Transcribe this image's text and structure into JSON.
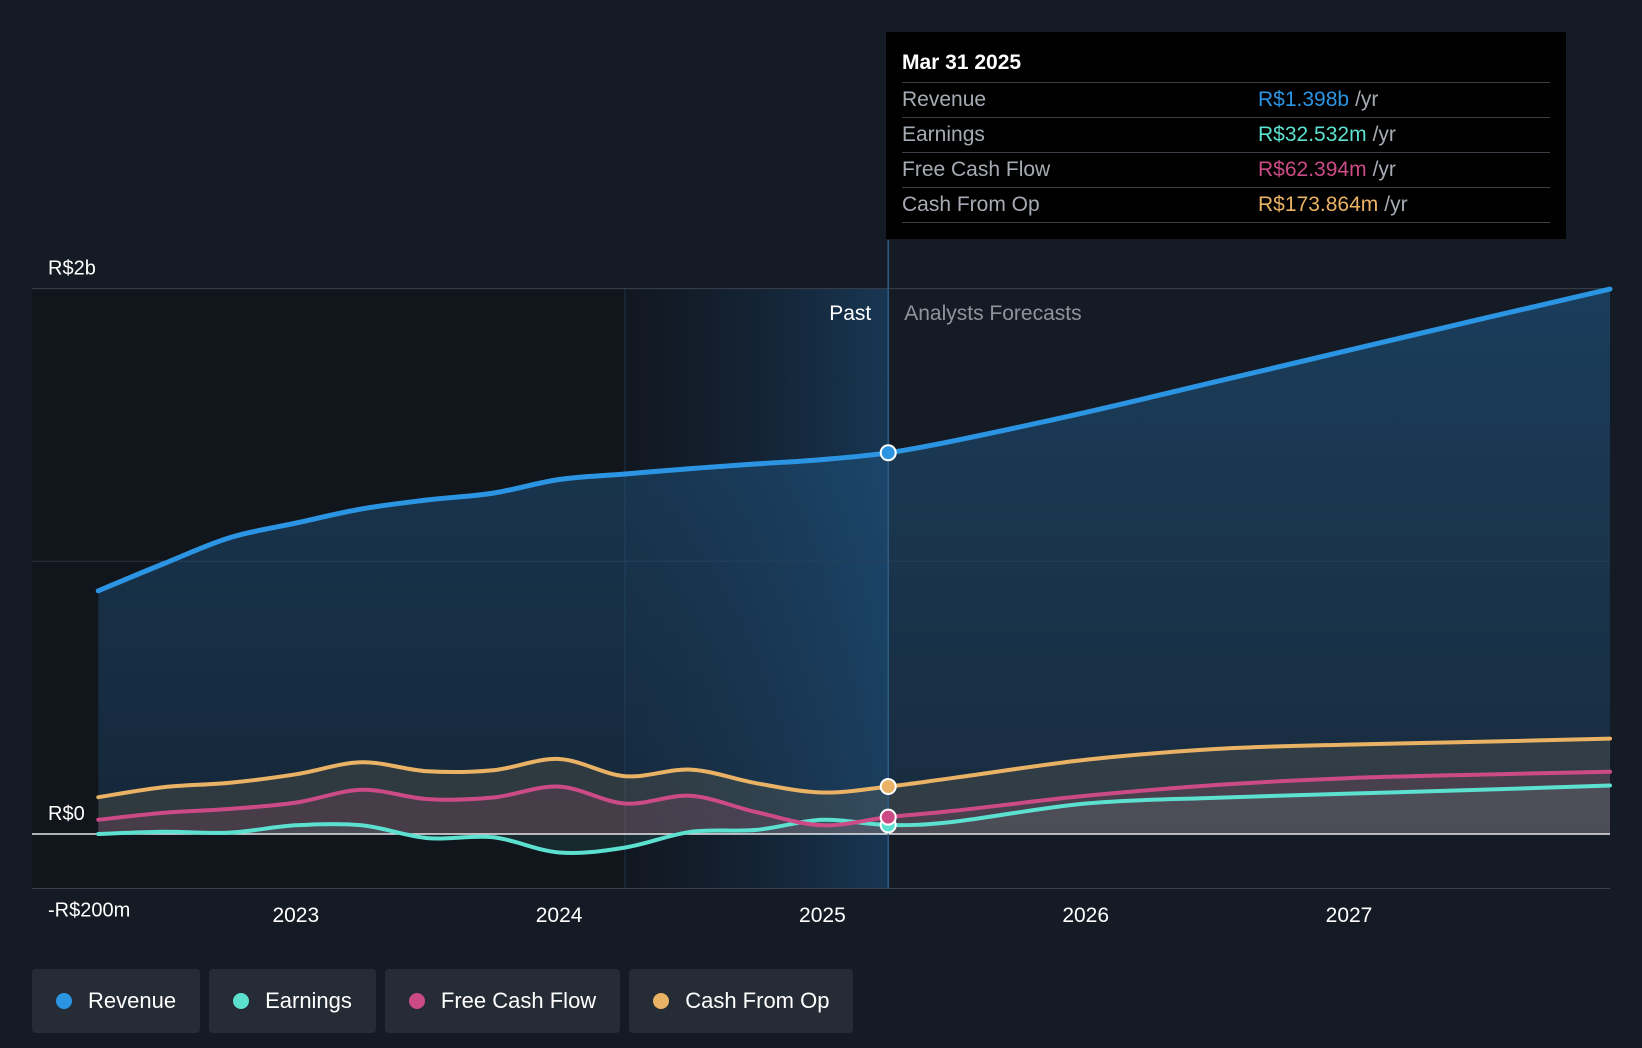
{
  "tooltip": {
    "date": "Mar 31 2025",
    "rows": [
      {
        "label": "Revenue",
        "value": "R$1.398b",
        "unit": "/yr",
        "color": "#2b95e3"
      },
      {
        "label": "Earnings",
        "value": "R$32.532m",
        "unit": "/yr",
        "color": "#5ce0d0"
      },
      {
        "label": "Free Cash Flow",
        "value": "R$62.394m",
        "unit": "/yr",
        "color": "#cc4b86"
      },
      {
        "label": "Cash From Op",
        "value": "R$173.864m",
        "unit": "/yr",
        "color": "#eab264"
      }
    ]
  },
  "legend": [
    {
      "label": "Revenue",
      "color": "#2b95e3"
    },
    {
      "label": "Earnings",
      "color": "#5ce0d0"
    },
    {
      "label": "Free Cash Flow",
      "color": "#cc4b86"
    },
    {
      "label": "Cash From Op",
      "color": "#eab264"
    }
  ],
  "chart_data": {
    "type": "area",
    "title": "",
    "xlabel": "",
    "ylabel": "",
    "y_ticks": [
      {
        "value": 2000,
        "label": "R$2b"
      },
      {
        "value": 0,
        "label": "R$0"
      },
      {
        "value": -200,
        "label": "-R$200m"
      }
    ],
    "x_ticks": [
      {
        "value": 2023,
        "label": "2023"
      },
      {
        "value": 2024,
        "label": "2024"
      },
      {
        "value": 2025,
        "label": "2025"
      },
      {
        "value": 2026,
        "label": "2026"
      },
      {
        "value": 2027,
        "label": "2027"
      }
    ],
    "xlim": [
      2022.0,
      2028.0
    ],
    "ylim": [
      -200,
      2000
    ],
    "grid_values": [
      1000
    ],
    "past_label": "Past",
    "forecast_label": "Analysts Forecasts",
    "highlight_start": 2024.25,
    "divider_x": 2025.25,
    "series": [
      {
        "name": "Revenue",
        "color": "#2b95e3",
        "x": [
          2022.25,
          2022.5,
          2022.75,
          2023.0,
          2023.25,
          2023.5,
          2023.75,
          2024.0,
          2024.25,
          2024.5,
          2024.75,
          2025.0,
          2025.25,
          2025.5,
          2026.0,
          2026.5,
          2027.0,
          2027.5,
          2028.0
        ],
        "values": [
          892,
          992,
          1087,
          1140,
          1192,
          1225,
          1250,
          1300,
          1320,
          1340,
          1357,
          1373,
          1398,
          1442,
          1546,
          1660,
          1774,
          1888,
          1998
        ]
      },
      {
        "name": "Earnings",
        "color": "#5ce0d0",
        "x": [
          2022.25,
          2022.5,
          2022.75,
          2023.0,
          2023.25,
          2023.5,
          2023.75,
          2024.0,
          2024.25,
          2024.5,
          2024.75,
          2025.0,
          2025.25,
          2025.5,
          2026.0,
          2026.5,
          2027.0,
          2027.5,
          2028.0
        ],
        "values": [
          0,
          8,
          5,
          32,
          32,
          -15,
          -12,
          -68,
          -50,
          8,
          15,
          52,
          33,
          45,
          112,
          133,
          148,
          162,
          178
        ]
      },
      {
        "name": "Free Cash Flow",
        "color": "#cc4b86",
        "x": [
          2022.25,
          2022.5,
          2022.75,
          2023.0,
          2023.25,
          2023.5,
          2023.75,
          2024.0,
          2024.25,
          2024.5,
          2024.75,
          2025.0,
          2025.25,
          2025.5,
          2026.0,
          2026.5,
          2027.0,
          2027.5,
          2028.0
        ],
        "values": [
          52,
          78,
          92,
          115,
          162,
          128,
          134,
          174,
          112,
          140,
          80,
          32,
          62,
          85,
          140,
          180,
          205,
          218,
          228
        ]
      },
      {
        "name": "Cash From Op",
        "color": "#eab264",
        "x": [
          2022.25,
          2022.5,
          2022.75,
          2023.0,
          2023.25,
          2023.5,
          2023.75,
          2024.0,
          2024.25,
          2024.5,
          2024.75,
          2025.0,
          2025.25,
          2025.5,
          2026.0,
          2026.5,
          2027.0,
          2027.5,
          2028.0
        ],
        "values": [
          135,
          172,
          188,
          219,
          263,
          230,
          234,
          275,
          212,
          236,
          186,
          152,
          174,
          206,
          272,
          312,
          328,
          338,
          350
        ]
      }
    ],
    "marker_x": 2025.25
  }
}
